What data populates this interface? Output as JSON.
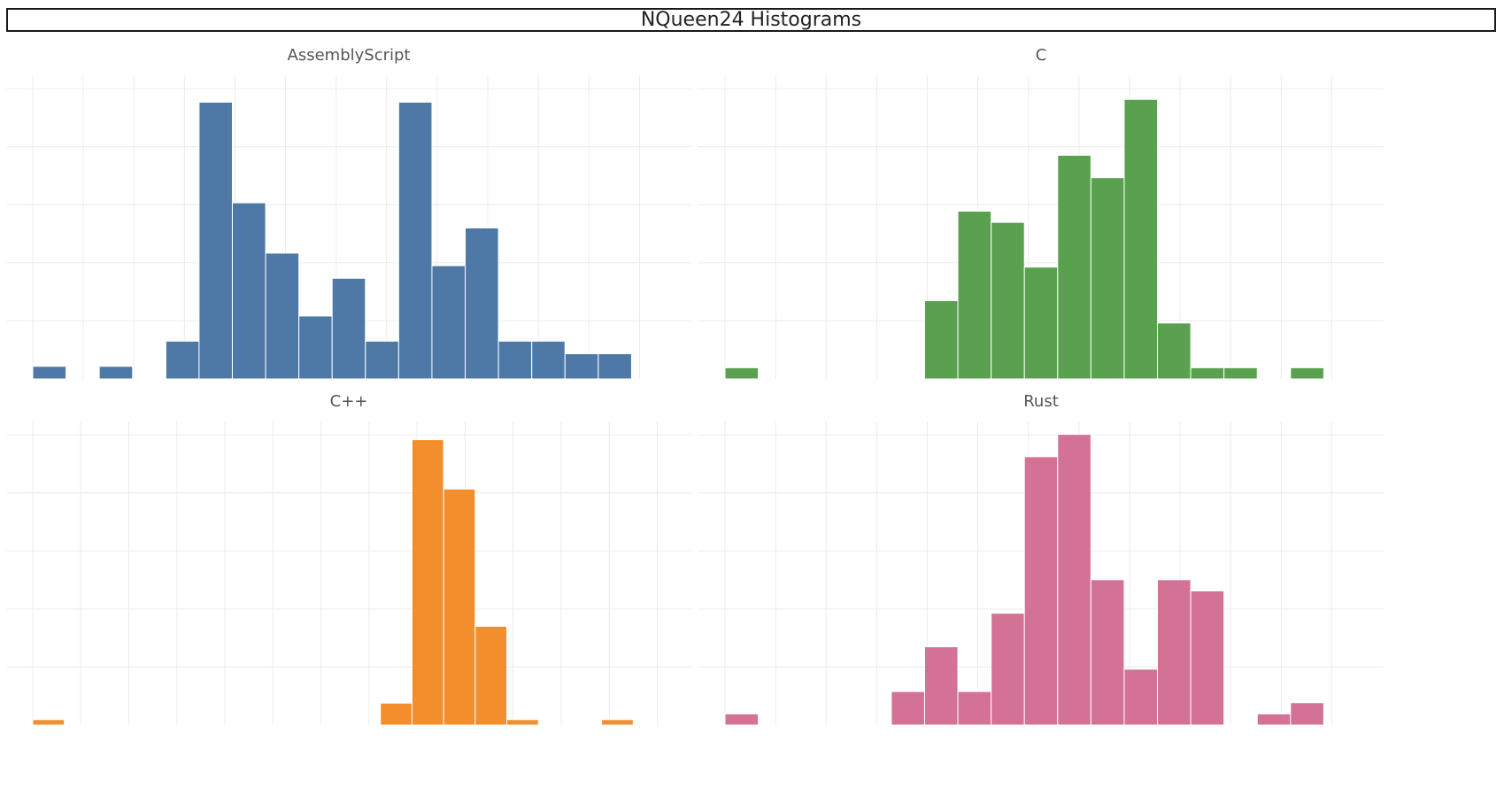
{
  "title": "NQueen24 Histograms",
  "chart_data": [
    {
      "type": "bar",
      "title": "AssemblyScript",
      "color": "#4e79a7",
      "bin_count": 19,
      "values": [
        1,
        0,
        1,
        0,
        3,
        22,
        14,
        10,
        5,
        8,
        3,
        22,
        9,
        12,
        3,
        3,
        2,
        2,
        0
      ],
      "ylim": [
        0,
        24
      ],
      "grid": true
    },
    {
      "type": "bar",
      "title": "C",
      "color": "#59a14f",
      "bin_count": 19,
      "values": [
        1,
        0,
        0,
        0,
        0,
        0,
        7,
        15,
        14,
        10,
        20,
        18,
        25,
        5,
        1,
        1,
        0,
        1,
        0
      ],
      "ylim": [
        0,
        27
      ],
      "grid": true
    },
    {
      "type": "bar",
      "title": "C++",
      "color": "#f28e2b",
      "bin_count": 20,
      "values": [
        1,
        0,
        0,
        0,
        0,
        0,
        0,
        0,
        0,
        0,
        0,
        4,
        52,
        43,
        18,
        1,
        0,
        0,
        1,
        0
      ],
      "ylim": [
        0,
        55
      ],
      "grid": true
    },
    {
      "type": "bar",
      "title": "Rust",
      "color": "#d37295",
      "bin_count": 19,
      "values": [
        1,
        0,
        0,
        0,
        0,
        3,
        7,
        3,
        10,
        24,
        26,
        13,
        5,
        13,
        12,
        0,
        1,
        2,
        0
      ],
      "ylim": [
        0,
        27
      ],
      "grid": true
    }
  ]
}
